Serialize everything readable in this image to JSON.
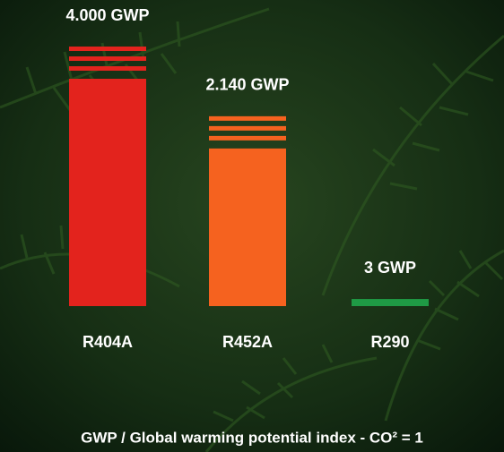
{
  "chart_data": {
    "type": "bar",
    "categories": [
      "R404A",
      "R452A",
      "R290"
    ],
    "values": [
      4000,
      2140,
      3
    ],
    "value_labels": [
      "4.000 GWP",
      "2.140 GWP",
      "3 GWP"
    ],
    "colors": [
      "#e3231d",
      "#f5621f",
      "#1f9a45"
    ],
    "footnote": "GWP / Global warming potential index  -  CO² = 1"
  }
}
